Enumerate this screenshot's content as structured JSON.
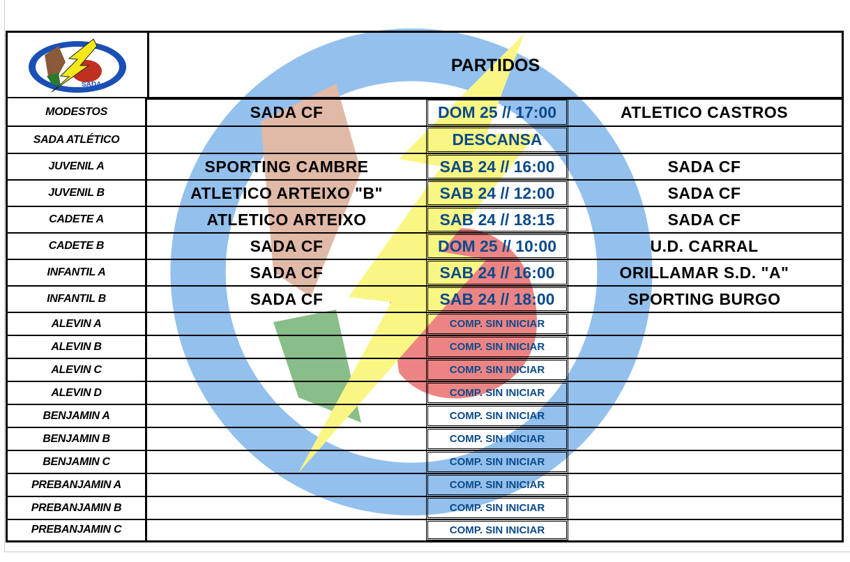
{
  "header": {
    "title": "PARTIDOS",
    "logo_text": "SADA C.F."
  },
  "colors": {
    "date_text": "#0b4a8a",
    "border": "#000000"
  },
  "rows": [
    {
      "category": "MODESTOS",
      "home": "SADA CF",
      "date": "DOM 25 // 17:00",
      "away": "ATLETICO CASTROS"
    },
    {
      "category": "SADA ATLÉTICO",
      "home": "",
      "date": "DESCANSA",
      "away": ""
    },
    {
      "category": "JUVENIL A",
      "home": "SPORTING CAMBRE",
      "date": "SAB 24 // 16:00",
      "away": "SADA CF"
    },
    {
      "category": "JUVENIL B",
      "home": "ATLETICO ARTEIXO \"B\"",
      "date": "SAB 24 // 12:00",
      "away": "SADA CF"
    },
    {
      "category": "CADETE A",
      "home": "ATLETICO ARTEIXO",
      "date": "SAB 24 // 18:15",
      "away": "SADA CF"
    },
    {
      "category": "CADETE B",
      "home": "SADA CF",
      "date": "DOM 25 // 10:00",
      "away": "U.D. CARRAL"
    },
    {
      "category": "INFANTIL A",
      "home": "SADA CF",
      "date": "SAB 24 // 16:00",
      "away": "ORILLAMAR S.D. \"A\""
    },
    {
      "category": "INFANTIL B",
      "home": "SADA CF",
      "date": "SAB 24 // 18:00",
      "away": "SPORTING BURGO"
    },
    {
      "category": "ALEVIN A",
      "home": "",
      "date": "COMP. SIN INICIAR",
      "away": ""
    },
    {
      "category": "ALEVIN B",
      "home": "",
      "date": "COMP. SIN INICIAR",
      "away": ""
    },
    {
      "category": "ALEVIN C",
      "home": "",
      "date": "COMP. SIN INICIAR",
      "away": ""
    },
    {
      "category": "ALEVIN D",
      "home": "",
      "date": "COMP. SIN INICIAR",
      "away": ""
    },
    {
      "category": "BENJAMIN A",
      "home": "",
      "date": "COMP. SIN INICIAR",
      "away": ""
    },
    {
      "category": "BENJAMIN B",
      "home": "",
      "date": "COMP. SIN INICIAR",
      "away": ""
    },
    {
      "category": "BENJAMIN C",
      "home": "",
      "date": "COMP. SIN INICIAR",
      "away": ""
    },
    {
      "category": "PREBANJAMIN A",
      "home": "",
      "date": "COMP. SIN INICIAR",
      "away": ""
    },
    {
      "category": "PREBANJAMIN B",
      "home": "",
      "date": "COMP. SIN INICIAR",
      "away": ""
    },
    {
      "category": "PREBANJAMIN C",
      "home": "",
      "date": "COMP. SIN INICIAR",
      "away": ""
    }
  ]
}
